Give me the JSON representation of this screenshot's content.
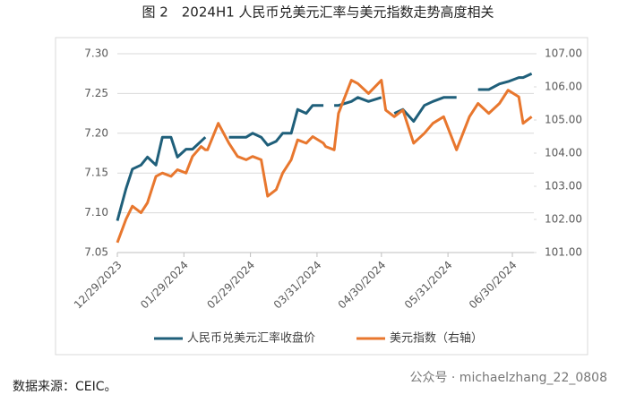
{
  "chart_data": {
    "type": "line",
    "title": "图 2　2024H1 人民币兑美元汇率与美元指数走势高度相关",
    "source": "数据来源：CEIC。",
    "watermark": "公众号 · michaelzhang_22_0808",
    "x": [
      "2023-12-29",
      "2024-01-02",
      "2024-01-05",
      "2024-01-09",
      "2024-01-12",
      "2024-01-16",
      "2024-01-19",
      "2024-01-23",
      "2024-01-26",
      "2024-01-30",
      "2024-02-02",
      "2024-02-06",
      "2024-02-08",
      "2024-02-09",
      "2024-02-14",
      "2024-02-19",
      "2024-02-23",
      "2024-02-27",
      "2024-03-01",
      "2024-03-05",
      "2024-03-08",
      "2024-03-12",
      "2024-03-15",
      "2024-03-19",
      "2024-03-22",
      "2024-03-26",
      "2024-03-29",
      "2024-04-03",
      "2024-04-04",
      "2024-04-08",
      "2024-04-10",
      "2024-04-16",
      "2024-04-19",
      "2024-04-24",
      "2024-04-30",
      "2024-05-02",
      "2024-05-06",
      "2024-05-10",
      "2024-05-15",
      "2024-05-20",
      "2024-05-24",
      "2024-05-29",
      "2024-06-04",
      "2024-06-10",
      "2024-06-14",
      "2024-06-19",
      "2024-06-24",
      "2024-06-28",
      "2024-07-03",
      "2024-07-05",
      "2024-07-09"
    ],
    "xlim": [
      "2023-12-29",
      "2024-07-10"
    ],
    "xticks": [
      {
        "value": "2023-12-29",
        "label": "12/29/2023"
      },
      {
        "value": "2024-01-29",
        "label": "01/29/2024"
      },
      {
        "value": "2024-02-29",
        "label": "02/29/2024"
      },
      {
        "value": "2024-03-31",
        "label": "03/31/2024"
      },
      {
        "value": "2024-04-30",
        "label": "04/30/2024"
      },
      {
        "value": "2024-05-31",
        "label": "05/31/2024"
      },
      {
        "value": "2024-06-30",
        "label": "06/30/2024"
      }
    ],
    "ylim": [
      7.05,
      7.3
    ],
    "yticks": [
      7.05,
      {
        "value": 7.1,
        "label": "7.10"
      },
      7.15,
      {
        "value": 7.2,
        "label": "7.20"
      },
      7.25,
      {
        "value": 7.3,
        "label": "7.30"
      }
    ],
    "y2lim": [
      101,
      107
    ],
    "y2ticks": [
      {
        "value": 101,
        "label": "101.00"
      },
      {
        "value": 102,
        "label": "102.00"
      },
      {
        "value": 103,
        "label": "103.00"
      },
      {
        "value": 104,
        "label": "104.00"
      },
      {
        "value": 105,
        "label": "105.00"
      },
      {
        "value": 106,
        "label": "106.00"
      },
      {
        "value": 107,
        "label": "107.00"
      }
    ],
    "grid": true,
    "legend": "bottom",
    "series": [
      {
        "name": "人民币兑美元汇率收盘价",
        "color": "#1f5f7a",
        "values": [
          7.09,
          7.13,
          7.155,
          7.16,
          7.17,
          7.16,
          7.195,
          7.195,
          7.17,
          7.18,
          7.18,
          7.19,
          7.195,
          null,
          null,
          7.195,
          7.195,
          7.195,
          7.2,
          7.195,
          7.185,
          7.19,
          7.2,
          7.2,
          7.23,
          7.225,
          7.235,
          7.235,
          null,
          7.235,
          7.235,
          7.24,
          7.245,
          7.24,
          7.245,
          null,
          7.225,
          7.23,
          7.215,
          7.235,
          7.24,
          7.245,
          7.245,
          null,
          7.255,
          7.255,
          7.262,
          7.265,
          7.27,
          7.27,
          7.275
        ]
      },
      {
        "name": "美元指数（右轴）",
        "color": "#e8772e",
        "axis": "y2",
        "values": [
          101.3,
          102.0,
          102.4,
          102.2,
          102.5,
          103.3,
          103.4,
          103.3,
          103.5,
          103.4,
          103.9,
          104.2,
          104.1,
          104.1,
          104.9,
          104.3,
          103.9,
          103.8,
          103.9,
          103.8,
          102.7,
          102.9,
          103.4,
          103.8,
          104.4,
          104.3,
          104.5,
          104.3,
          104.2,
          104.1,
          105.2,
          106.2,
          106.1,
          105.8,
          106.2,
          105.3,
          105.1,
          105.3,
          104.3,
          104.6,
          104.9,
          105.1,
          104.1,
          105.1,
          105.5,
          105.2,
          105.5,
          105.9,
          105.7,
          104.9,
          105.1
        ]
      }
    ]
  }
}
